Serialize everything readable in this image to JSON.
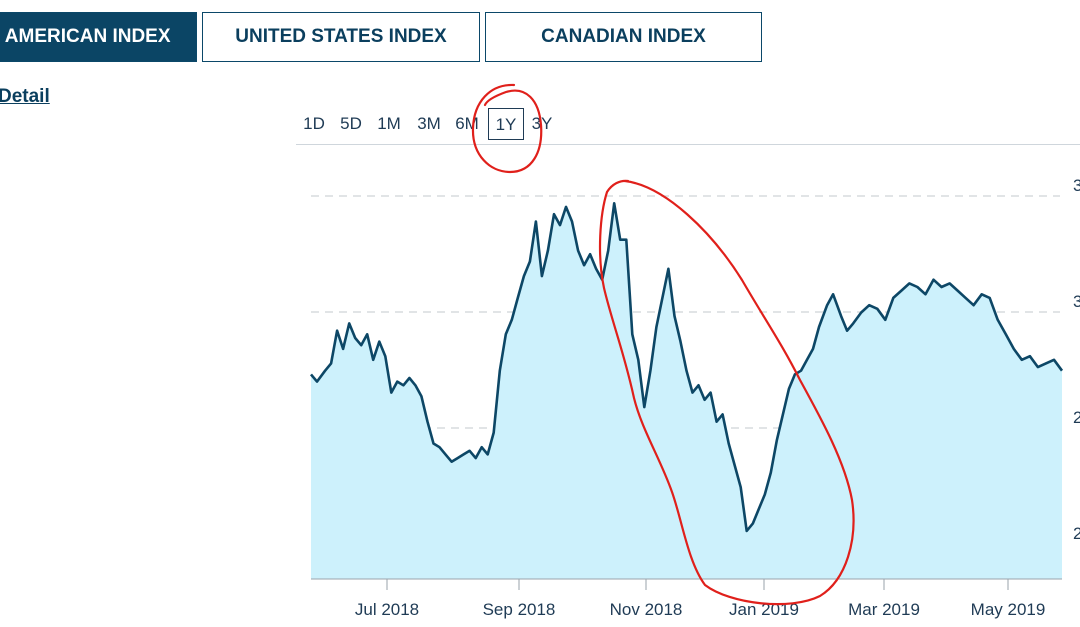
{
  "tabs": [
    {
      "label": "H AMERICAN INDEX",
      "active": true
    },
    {
      "label": "UNITED STATES INDEX",
      "active": false
    },
    {
      "label": "CANADIAN INDEX",
      "active": false
    }
  ],
  "detail_link": "Detail",
  "ranges": [
    {
      "label": "1D",
      "active": false
    },
    {
      "label": "5D",
      "active": false
    },
    {
      "label": "1M",
      "active": false
    },
    {
      "label": "3M",
      "active": false
    },
    {
      "label": "6M",
      "active": false
    },
    {
      "label": "1Y",
      "active": true
    },
    {
      "label": "3Y",
      "active": false
    }
  ],
  "colors": {
    "line": "#0d4766",
    "area": "#cdf1fc",
    "annotation": "#e0201b",
    "grid": "#cfd3d8"
  },
  "chart_data": {
    "type": "area",
    "x_range": [
      "2018-05-22",
      "2019-05-31"
    ],
    "x_ticks": [
      "Jul 2018",
      "Sep 2018",
      "Nov 2018",
      "Jan 2019",
      "Mar 2019",
      "May 2019"
    ],
    "y_tick_labels": [
      "3",
      "3",
      "2",
      "2"
    ],
    "grid": "horizontal dashed",
    "series": [
      {
        "points": [
          [
            "2018-05-22",
            0.51
          ],
          [
            "2018-05-25",
            0.49
          ],
          [
            "2018-05-29",
            0.52
          ],
          [
            "2018-06-01",
            0.54
          ],
          [
            "2018-06-04",
            0.63
          ],
          [
            "2018-06-07",
            0.58
          ],
          [
            "2018-06-10",
            0.65
          ],
          [
            "2018-06-13",
            0.61
          ],
          [
            "2018-06-16",
            0.59
          ],
          [
            "2018-06-19",
            0.62
          ],
          [
            "2018-06-22",
            0.55
          ],
          [
            "2018-06-25",
            0.6
          ],
          [
            "2018-06-28",
            0.56
          ],
          [
            "2018-07-01",
            0.46
          ],
          [
            "2018-07-04",
            0.49
          ],
          [
            "2018-07-07",
            0.48
          ],
          [
            "2018-07-10",
            0.5
          ],
          [
            "2018-07-13",
            0.48
          ],
          [
            "2018-07-16",
            0.45
          ],
          [
            "2018-07-19",
            0.38
          ],
          [
            "2018-07-22",
            0.32
          ],
          [
            "2018-07-25",
            0.31
          ],
          [
            "2018-07-28",
            0.29
          ],
          [
            "2018-07-31",
            0.27
          ],
          [
            "2018-08-03",
            0.28
          ],
          [
            "2018-08-06",
            0.29
          ],
          [
            "2018-08-09",
            0.3
          ],
          [
            "2018-08-12",
            0.28
          ],
          [
            "2018-08-15",
            0.31
          ],
          [
            "2018-08-18",
            0.29
          ],
          [
            "2018-08-21",
            0.35
          ],
          [
            "2018-08-24",
            0.52
          ],
          [
            "2018-08-27",
            0.62
          ],
          [
            "2018-08-30",
            0.66
          ],
          [
            "2018-09-02",
            0.72
          ],
          [
            "2018-09-05",
            0.78
          ],
          [
            "2018-09-08",
            0.82
          ],
          [
            "2018-09-11",
            0.93
          ],
          [
            "2018-09-14",
            0.78
          ],
          [
            "2018-09-17",
            0.85
          ],
          [
            "2018-09-20",
            0.95
          ],
          [
            "2018-09-23",
            0.92
          ],
          [
            "2018-09-26",
            0.97
          ],
          [
            "2018-09-29",
            0.93
          ],
          [
            "2018-10-02",
            0.85
          ],
          [
            "2018-10-05",
            0.81
          ],
          [
            "2018-10-08",
            0.84
          ],
          [
            "2018-10-11",
            0.8
          ],
          [
            "2018-10-14",
            0.77
          ],
          [
            "2018-10-17",
            0.85
          ],
          [
            "2018-10-20",
            0.98
          ],
          [
            "2018-10-23",
            0.88
          ],
          [
            "2018-10-26",
            0.88
          ],
          [
            "2018-10-29",
            0.62
          ],
          [
            "2018-11-01",
            0.55
          ],
          [
            "2018-11-04",
            0.42
          ],
          [
            "2018-11-07",
            0.52
          ],
          [
            "2018-11-10",
            0.64
          ],
          [
            "2018-11-13",
            0.72
          ],
          [
            "2018-11-16",
            0.8
          ],
          [
            "2018-11-19",
            0.67
          ],
          [
            "2018-11-22",
            0.6
          ],
          [
            "2018-11-25",
            0.52
          ],
          [
            "2018-11-28",
            0.46
          ],
          [
            "2018-12-01",
            0.48
          ],
          [
            "2018-12-04",
            0.44
          ],
          [
            "2018-12-07",
            0.46
          ],
          [
            "2018-12-10",
            0.38
          ],
          [
            "2018-12-13",
            0.4
          ],
          [
            "2018-12-16",
            0.32
          ],
          [
            "2018-12-19",
            0.26
          ],
          [
            "2018-12-22",
            0.2
          ],
          [
            "2018-12-25",
            0.08
          ],
          [
            "2018-12-28",
            0.1
          ],
          [
            "2018-12-31",
            0.14
          ],
          [
            "2019-01-03",
            0.18
          ],
          [
            "2019-01-06",
            0.24
          ],
          [
            "2019-01-09",
            0.33
          ],
          [
            "2019-01-12",
            0.4
          ],
          [
            "2019-01-15",
            0.47
          ],
          [
            "2019-01-18",
            0.51
          ],
          [
            "2019-01-21",
            0.52
          ],
          [
            "2019-01-24",
            0.55
          ],
          [
            "2019-01-27",
            0.58
          ],
          [
            "2019-01-30",
            0.64
          ],
          [
            "2019-02-03",
            0.7
          ],
          [
            "2019-02-06",
            0.73
          ],
          [
            "2019-02-10",
            0.67
          ],
          [
            "2019-02-13",
            0.63
          ],
          [
            "2019-02-16",
            0.65
          ],
          [
            "2019-02-20",
            0.68
          ],
          [
            "2019-02-24",
            0.7
          ],
          [
            "2019-02-28",
            0.69
          ],
          [
            "2019-03-04",
            0.66
          ],
          [
            "2019-03-08",
            0.72
          ],
          [
            "2019-03-12",
            0.74
          ],
          [
            "2019-03-16",
            0.76
          ],
          [
            "2019-03-20",
            0.75
          ],
          [
            "2019-03-24",
            0.73
          ],
          [
            "2019-03-28",
            0.77
          ],
          [
            "2019-04-01",
            0.75
          ],
          [
            "2019-04-05",
            0.76
          ],
          [
            "2019-04-09",
            0.74
          ],
          [
            "2019-04-13",
            0.72
          ],
          [
            "2019-04-17",
            0.7
          ],
          [
            "2019-04-21",
            0.73
          ],
          [
            "2019-04-25",
            0.72
          ],
          [
            "2019-04-29",
            0.66
          ],
          [
            "2019-05-03",
            0.62
          ],
          [
            "2019-05-07",
            0.58
          ],
          [
            "2019-05-11",
            0.55
          ],
          [
            "2019-05-15",
            0.56
          ],
          [
            "2019-05-19",
            0.53
          ],
          [
            "2019-05-23",
            0.54
          ],
          [
            "2019-05-27",
            0.55
          ],
          [
            "2019-05-31",
            0.52
          ]
        ]
      }
    ]
  }
}
